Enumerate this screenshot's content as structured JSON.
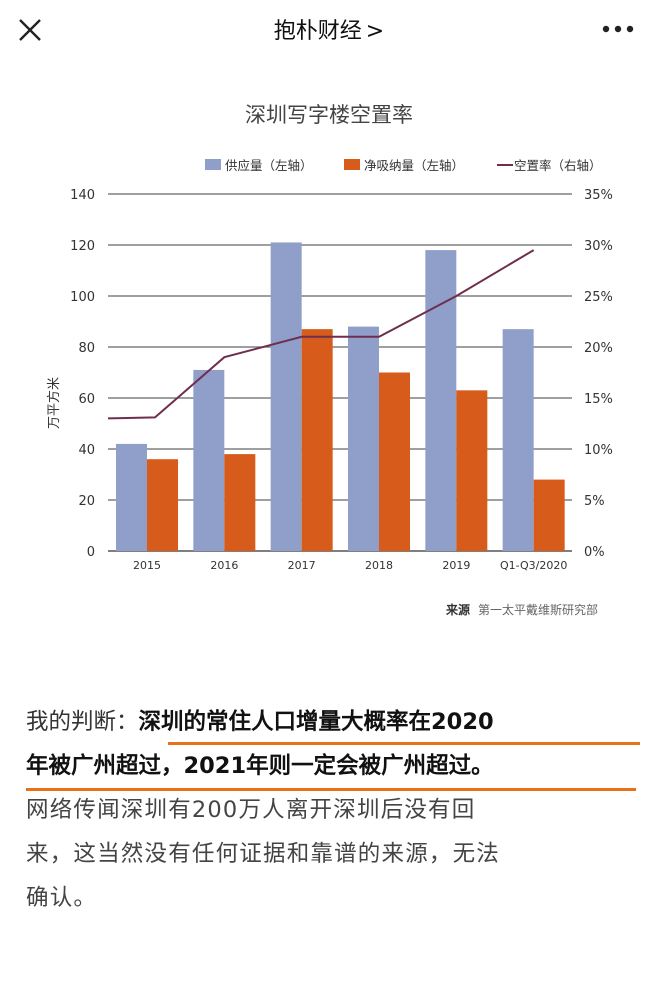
{
  "header": {
    "title": "抱朴财经",
    "chevron": ">",
    "close_icon": "close-icon",
    "more_icon": "more-icon"
  },
  "chart_data": {
    "type": "bar",
    "title": "深圳写字楼空置率",
    "categories": [
      "2015",
      "2016",
      "2017",
      "2018",
      "2019",
      "Q1-Q3/2020"
    ],
    "series": [
      {
        "name": "供应量（左轴）",
        "kind": "bar",
        "axis": "left",
        "color": "#8f9fca",
        "values": [
          42,
          71,
          121,
          88,
          118,
          87
        ]
      },
      {
        "name": "净吸纳量（左轴）",
        "kind": "bar",
        "axis": "left",
        "color": "#d75b1b",
        "values": [
          36,
          38,
          87,
          70,
          63,
          28
        ]
      },
      {
        "name": "空置率（右轴）",
        "kind": "line",
        "axis": "right",
        "color": "#6e2f4e",
        "values": [
          13,
          19,
          21,
          21,
          25,
          29.5
        ]
      }
    ],
    "ylabel": "万平方米",
    "ylim": [
      0,
      140
    ],
    "yticks": [
      "0",
      "20",
      "40",
      "60",
      "80",
      "100",
      "120",
      "140"
    ],
    "y2lim": [
      0,
      35
    ],
    "y2ticks": [
      "0%",
      "5%",
      "10%",
      "15%",
      "20%",
      "25%",
      "30%",
      "35%"
    ],
    "grid": true,
    "legend_position": "top",
    "source_label": "来源",
    "source_text": "第一太平戴维斯研究部"
  },
  "article": {
    "lead": "我的判断：",
    "highlight_1": "深圳的常住人口增量大概率在2020",
    "highlight_2": "年被广州超过，2021年则一定会被广州超过。",
    "body_1": "网络传闻深圳有200万人离开深圳后没有回",
    "body_2": "来，这当然没有任何证据和靠谱的来源，无法",
    "body_3": "确认。",
    "underline_color": "#e8711a"
  }
}
